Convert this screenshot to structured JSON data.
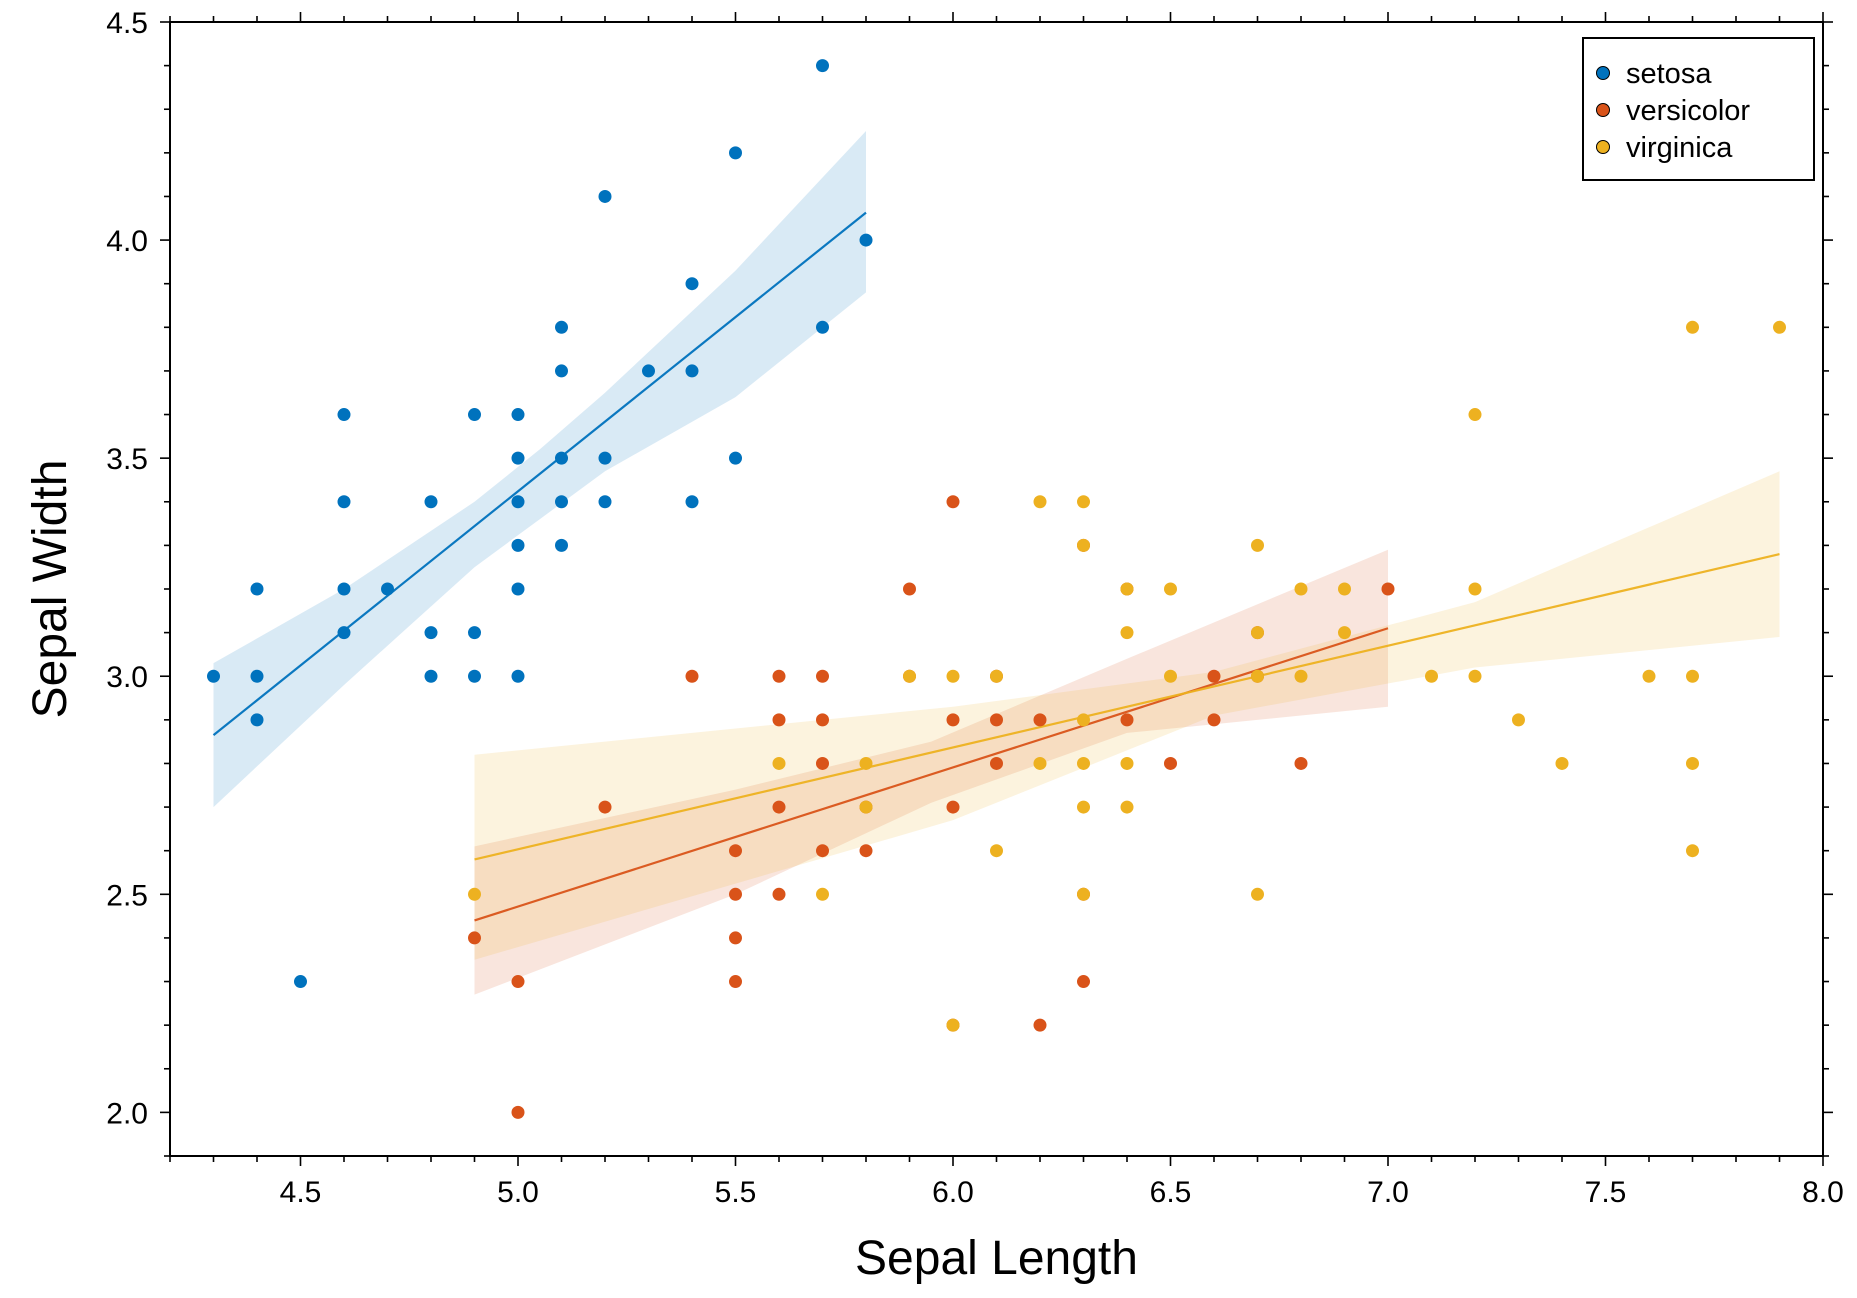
{
  "chart_data": {
    "type": "scatter",
    "title": "",
    "xlabel": "Sepal Length",
    "ylabel": "Sepal Width",
    "xlim": [
      4.2,
      8.0
    ],
    "ylim": [
      1.9,
      4.5
    ],
    "xticks": [
      4.5,
      5.0,
      5.5,
      6.0,
      6.5,
      7.0,
      7.5,
      8.0
    ],
    "yticks": [
      2.0,
      2.5,
      3.0,
      3.5,
      4.0,
      4.5
    ],
    "xtick_labels": [
      "4.5",
      "5.0",
      "5.5",
      "6.0",
      "6.5",
      "7.0",
      "7.5",
      "8.0"
    ],
    "ytick_labels": [
      "2.0",
      "2.5",
      "3.0",
      "3.5",
      "4.0",
      "4.5"
    ],
    "grid": false,
    "legend_position": "top-right",
    "series": [
      {
        "name": "setosa",
        "color": "#0072BD",
        "points": [
          [
            4.3,
            3.0
          ],
          [
            4.4,
            2.9
          ],
          [
            4.4,
            3.0
          ],
          [
            4.4,
            3.2
          ],
          [
            4.5,
            2.3
          ],
          [
            4.6,
            3.1
          ],
          [
            4.6,
            3.2
          ],
          [
            4.6,
            3.4
          ],
          [
            4.6,
            3.6
          ],
          [
            4.7,
            3.2
          ],
          [
            4.8,
            3.0
          ],
          [
            4.8,
            3.1
          ],
          [
            4.8,
            3.4
          ],
          [
            4.9,
            3.0
          ],
          [
            4.9,
            3.1
          ],
          [
            4.9,
            3.6
          ],
          [
            5.0,
            3.0
          ],
          [
            5.0,
            3.2
          ],
          [
            5.0,
            3.3
          ],
          [
            5.0,
            3.4
          ],
          [
            5.0,
            3.5
          ],
          [
            5.0,
            3.6
          ],
          [
            5.1,
            3.3
          ],
          [
            5.1,
            3.4
          ],
          [
            5.1,
            3.5
          ],
          [
            5.1,
            3.7
          ],
          [
            5.1,
            3.8
          ],
          [
            5.2,
            3.4
          ],
          [
            5.2,
            3.5
          ],
          [
            5.2,
            4.1
          ],
          [
            5.3,
            3.7
          ],
          [
            5.4,
            3.4
          ],
          [
            5.4,
            3.7
          ],
          [
            5.4,
            3.9
          ],
          [
            5.5,
            3.5
          ],
          [
            5.5,
            4.2
          ],
          [
            5.7,
            3.8
          ],
          [
            5.7,
            4.4
          ],
          [
            5.8,
            4.0
          ]
        ],
        "fit": {
          "x": [
            4.3,
            5.8
          ],
          "y": [
            2.865,
            4.063
          ]
        },
        "band": {
          "x": [
            4.3,
            4.6,
            4.9,
            5.05,
            5.2,
            5.5,
            5.8
          ],
          "upper": [
            3.03,
            3.2,
            3.4,
            3.52,
            3.65,
            3.93,
            4.25
          ],
          "lower": [
            2.7,
            2.98,
            3.25,
            3.36,
            3.47,
            3.64,
            3.88
          ]
        }
      },
      {
        "name": "versicolor",
        "color": "#D95319",
        "points": [
          [
            4.9,
            2.4
          ],
          [
            5.0,
            2.0
          ],
          [
            5.0,
            2.3
          ],
          [
            5.2,
            2.7
          ],
          [
            5.4,
            3.0
          ],
          [
            5.5,
            2.3
          ],
          [
            5.5,
            2.4
          ],
          [
            5.5,
            2.5
          ],
          [
            5.5,
            2.6
          ],
          [
            5.6,
            2.5
          ],
          [
            5.6,
            2.7
          ],
          [
            5.6,
            2.9
          ],
          [
            5.6,
            3.0
          ],
          [
            5.7,
            2.6
          ],
          [
            5.7,
            2.8
          ],
          [
            5.7,
            2.9
          ],
          [
            5.7,
            3.0
          ],
          [
            5.8,
            2.6
          ],
          [
            5.8,
            2.7
          ],
          [
            5.9,
            3.0
          ],
          [
            5.9,
            3.2
          ],
          [
            6.0,
            2.2
          ],
          [
            6.0,
            2.7
          ],
          [
            6.0,
            2.9
          ],
          [
            6.0,
            3.4
          ],
          [
            6.1,
            2.8
          ],
          [
            6.1,
            2.9
          ],
          [
            6.1,
            3.0
          ],
          [
            6.2,
            2.2
          ],
          [
            6.2,
            2.9
          ],
          [
            6.3,
            2.3
          ],
          [
            6.3,
            2.5
          ],
          [
            6.3,
            3.3
          ],
          [
            6.4,
            2.9
          ],
          [
            6.4,
            3.2
          ],
          [
            6.5,
            2.8
          ],
          [
            6.6,
            2.9
          ],
          [
            6.6,
            3.0
          ],
          [
            6.7,
            3.0
          ],
          [
            6.7,
            3.1
          ],
          [
            6.8,
            2.8
          ],
          [
            7.0,
            3.2
          ]
        ],
        "fit": {
          "x": [
            4.9,
            7.0
          ],
          "y": [
            2.44,
            3.11
          ]
        },
        "band": {
          "x": [
            4.9,
            5.5,
            5.95,
            6.4,
            7.0
          ],
          "upper": [
            2.61,
            2.74,
            2.85,
            3.04,
            3.29
          ],
          "lower": [
            2.27,
            2.5,
            2.71,
            2.87,
            2.93
          ]
        }
      },
      {
        "name": "virginica",
        "color": "#EDB120",
        "points": [
          [
            4.9,
            2.5
          ],
          [
            5.6,
            2.8
          ],
          [
            5.7,
            2.5
          ],
          [
            5.8,
            2.7
          ],
          [
            5.8,
            2.8
          ],
          [
            5.9,
            3.0
          ],
          [
            6.0,
            2.2
          ],
          [
            6.0,
            3.0
          ],
          [
            6.1,
            2.6
          ],
          [
            6.1,
            3.0
          ],
          [
            6.2,
            2.8
          ],
          [
            6.2,
            3.4
          ],
          [
            6.3,
            2.5
          ],
          [
            6.3,
            2.7
          ],
          [
            6.3,
            2.8
          ],
          [
            6.3,
            2.9
          ],
          [
            6.3,
            3.3
          ],
          [
            6.3,
            3.4
          ],
          [
            6.4,
            2.7
          ],
          [
            6.4,
            2.8
          ],
          [
            6.4,
            3.1
          ],
          [
            6.4,
            3.2
          ],
          [
            6.5,
            3.0
          ],
          [
            6.5,
            3.2
          ],
          [
            6.7,
            2.5
          ],
          [
            6.7,
            3.0
          ],
          [
            6.7,
            3.1
          ],
          [
            6.7,
            3.3
          ],
          [
            6.8,
            3.0
          ],
          [
            6.8,
            3.2
          ],
          [
            6.9,
            3.1
          ],
          [
            6.9,
            3.2
          ],
          [
            7.1,
            3.0
          ],
          [
            7.2,
            3.0
          ],
          [
            7.2,
            3.2
          ],
          [
            7.2,
            3.6
          ],
          [
            7.3,
            2.9
          ],
          [
            7.4,
            2.8
          ],
          [
            7.6,
            3.0
          ],
          [
            7.7,
            2.6
          ],
          [
            7.7,
            2.8
          ],
          [
            7.7,
            3.0
          ],
          [
            7.7,
            3.8
          ],
          [
            7.9,
            3.8
          ]
        ],
        "fit": {
          "x": [
            4.9,
            7.9
          ],
          "y": [
            2.58,
            3.28
          ]
        },
        "band": {
          "x": [
            4.9,
            6.0,
            6.6,
            7.2,
            7.9
          ],
          "upper": [
            2.82,
            2.93,
            3.01,
            3.17,
            3.47
          ],
          "lower": [
            2.35,
            2.67,
            2.91,
            3.02,
            3.09
          ]
        }
      }
    ]
  }
}
